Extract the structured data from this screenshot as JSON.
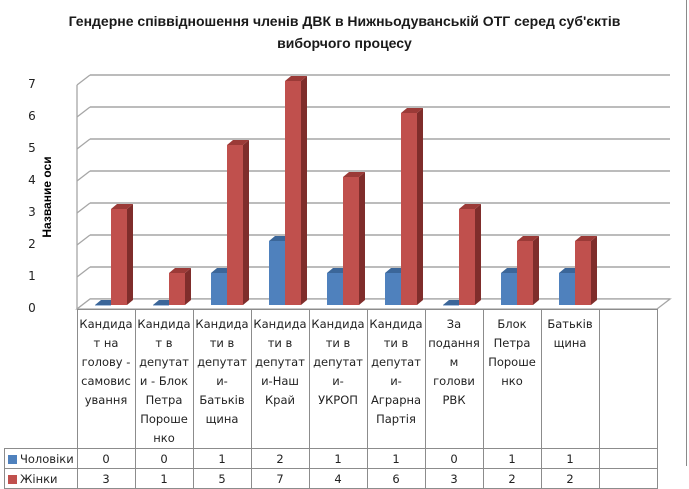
{
  "chart_data": {
    "type": "bar",
    "title": "Гендерне співвідношення членів ДВК в Нижньодуванській ОТГ серед суб'єктів виборчого процесу",
    "title_lines": [
      "Гендерне співвідношення членів ДВК в Нижньодуванській ОТГ серед суб'єктів",
      "виборчого процесу"
    ],
    "xlabel": "",
    "ylabel": "Название оси",
    "ylim": [
      0,
      7
    ],
    "yticks": [
      "0",
      "1",
      "2",
      "3",
      "4",
      "5",
      "6",
      "7"
    ],
    "grid": true,
    "style": "3d clustered column with data table",
    "categories": [
      "Кандидат на голову - самовисування",
      "Кандидат в депутати - Блок Петра Порошенко",
      "Кандидати в депутати-Батьківщина",
      "Кандидати в депутати-Наш Край",
      "Кандидати в депутати-УКРОП",
      "Кандидати в депутати-Аграрна Партія",
      "За поданням голови РВК",
      "Блок Петра Порошенко",
      "Батьківщина",
      ""
    ],
    "category_lines": [
      [
        "Кандида",
        "т на",
        "голову -",
        "самовис",
        "ування"
      ],
      [
        "Кандида",
        "т в",
        "депутат",
        "и - Блок",
        "Петра",
        "Пороше",
        "нко"
      ],
      [
        "Кандида",
        "ти в",
        "депутат",
        "и-",
        "Батьків",
        "щина"
      ],
      [
        "Кандида",
        "ти в",
        "депутат",
        "и-Наш",
        "Край"
      ],
      [
        "Кандида",
        "ти в",
        "депутат",
        "и-",
        "УКРОП"
      ],
      [
        "Кандида",
        "ти в",
        "депутат",
        "и-",
        "Аграрна",
        "Партія"
      ],
      [
        "За",
        "подання",
        "м",
        "голови",
        "РВК"
      ],
      [
        "Блок",
        "Петра",
        "Пороше",
        "нко"
      ],
      [
        "Батьків",
        "щина"
      ],
      []
    ],
    "series": [
      {
        "name": "Чоловіки",
        "color": "#4f81bd",
        "values": [
          0,
          0,
          1,
          2,
          1,
          1,
          0,
          1,
          1,
          null
        ],
        "labels": [
          "0",
          "0",
          "1",
          "2",
          "1",
          "1",
          "0",
          "1",
          "1",
          ""
        ]
      },
      {
        "name": "Жінки",
        "color": "#c0504d",
        "values": [
          3,
          1,
          5,
          7,
          4,
          6,
          3,
          2,
          2,
          null
        ],
        "labels": [
          "3",
          "1",
          "5",
          "7",
          "4",
          "6",
          "3",
          "2",
          "2",
          ""
        ]
      }
    ],
    "legend_position": "data table (left of rows)"
  }
}
